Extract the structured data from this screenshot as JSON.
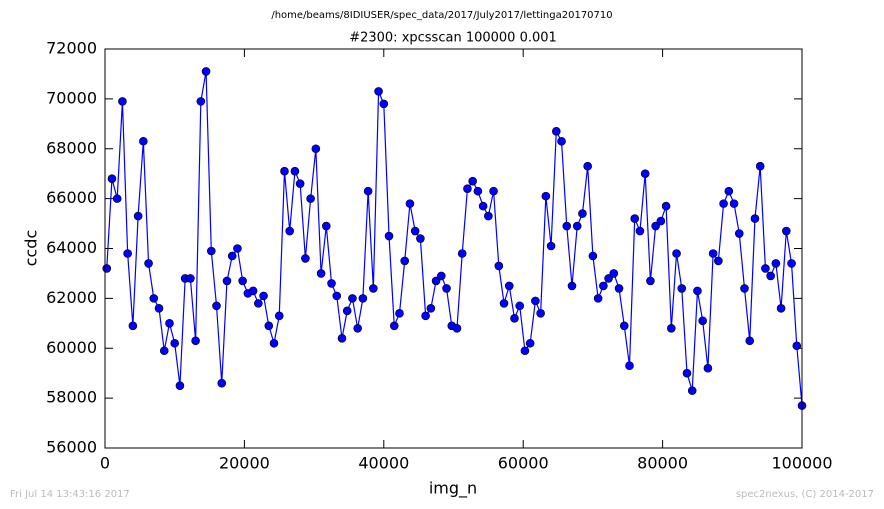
{
  "chart_data": {
    "type": "line",
    "suptitle": "/home/beams/8IDIUSER/spec_data/2017/July2017/lettinga20170710",
    "title": "#2300: xpcsscan 100000 0.001",
    "xlabel": "img_n",
    "ylabel": "ccdc",
    "footer_left": "Fri Jul 14 13:43:16 2017",
    "footer_right": "spec2nexus, (C) 2014-2017",
    "xlim": [
      0,
      100000
    ],
    "xticks": [
      0,
      20000,
      40000,
      60000,
      80000,
      100000
    ],
    "ylim": [
      56000,
      72000
    ],
    "yticks": [
      56000,
      58000,
      60000,
      62000,
      64000,
      66000,
      68000,
      70000,
      72000
    ],
    "x": [
      250,
      1000,
      1750,
      2500,
      3250,
      4000,
      4750,
      5500,
      6250,
      7000,
      7750,
      8500,
      9250,
      10000,
      10750,
      11500,
      12250,
      13000,
      13750,
      14500,
      15250,
      16000,
      16750,
      17500,
      18250,
      19000,
      19750,
      20500,
      21250,
      22000,
      22750,
      23500,
      24250,
      25000,
      25750,
      26500,
      27250,
      28000,
      28750,
      29500,
      30250,
      31000,
      31750,
      32500,
      33250,
      34000,
      34750,
      35500,
      36250,
      37000,
      37750,
      38500,
      39250,
      40000,
      40750,
      41500,
      42250,
      43000,
      43750,
      44500,
      45250,
      46000,
      46750,
      47500,
      48250,
      49000,
      49750,
      50500,
      51250,
      52000,
      52750,
      53500,
      54250,
      55000,
      55750,
      56500,
      57250,
      58000,
      58750,
      59500,
      60250,
      61000,
      61750,
      62500,
      63250,
      64000,
      64750,
      65500,
      66250,
      67000,
      67750,
      68500,
      69250,
      70000,
      70750,
      71500,
      72250,
      73000,
      73750,
      74500,
      75250,
      76000,
      76750,
      77500,
      78250,
      79000,
      79750,
      80500,
      81250,
      82000,
      82750,
      83500,
      84250,
      85000,
      85750,
      86500,
      87250,
      88000,
      88750,
      89500,
      90250,
      91000,
      91750,
      92500,
      93250,
      94000,
      94750,
      95500,
      96250,
      97000,
      97750,
      98500,
      99250,
      100000
    ],
    "series": [
      {
        "color": "#0000ff",
        "values": [
          63200,
          66800,
          66000,
          69900,
          63800,
          60900,
          65300,
          68300,
          63400,
          62000,
          61600,
          59900,
          61000,
          60200,
          58500,
          62800,
          62800,
          60300,
          69900,
          71100,
          63900,
          61700,
          58600,
          62700,
          63700,
          64000,
          62700,
          62200,
          62300,
          61800,
          62100,
          60900,
          60200,
          61300,
          67100,
          64700,
          67100,
          66600,
          63600,
          66000,
          68000,
          63000,
          64900,
          62600,
          62100,
          60400,
          61500,
          62000,
          60800,
          62000,
          66300,
          62400,
          70300,
          69800,
          64500,
          60900,
          61400,
          63500,
          65800,
          64700,
          64400,
          61300,
          61600,
          62700,
          62900,
          62400,
          60900,
          60800,
          63800,
          66400,
          66700,
          66300,
          65700,
          65300,
          66300,
          63300,
          61800,
          62500,
          61200,
          61700,
          59900,
          60200,
          61900,
          61400,
          66100,
          64100,
          68700,
          68300,
          64900,
          62500,
          64900,
          65400,
          67300,
          63700,
          62000,
          62500,
          62800,
          63000,
          62400,
          60900,
          59300,
          65200,
          64700,
          67000,
          62700,
          64900,
          65100,
          65700,
          60800,
          63800,
          62400,
          59000,
          58300,
          62300,
          61100,
          59200,
          63800,
          63500,
          65800,
          66300,
          65800,
          64600,
          62400,
          60300,
          65200,
          67300,
          63200,
          62900,
          63400,
          61600,
          64700,
          63400,
          60100,
          57700
        ]
      }
    ]
  }
}
